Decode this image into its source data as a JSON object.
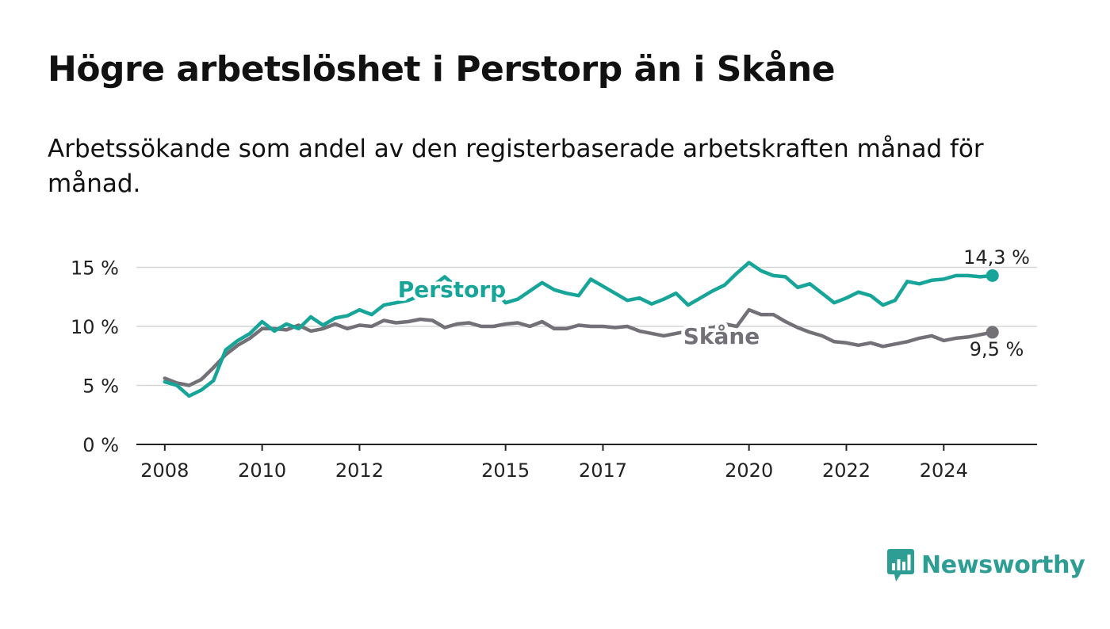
{
  "chart_data": {
    "type": "line",
    "title": "Högre arbetslöshet i Perstorp än i Skåne",
    "subtitle": "Arbetssökande som andel av den registerbaserade arbetskraften månad för månad.",
    "x_ticks": [
      "2008",
      "2010",
      "2012",
      "2015",
      "2017",
      "2020",
      "2022",
      "2024"
    ],
    "y_ticks": [
      "0 %",
      "5 %",
      "10 %",
      "15 %"
    ],
    "ylim": [
      0,
      15.5
    ],
    "xlim": [
      "2007-06",
      "2025-12"
    ],
    "grid": true,
    "series": [
      {
        "name": "Perstorp",
        "color": "#17a59a",
        "end_label": "14,3 %",
        "x": [
          "2008-01",
          "2008-04",
          "2008-07",
          "2008-10",
          "2009-01",
          "2009-04",
          "2009-07",
          "2009-10",
          "2010-01",
          "2010-04",
          "2010-07",
          "2010-10",
          "2011-01",
          "2011-04",
          "2011-07",
          "2011-10",
          "2012-01",
          "2012-04",
          "2012-07",
          "2012-10",
          "2013-01",
          "2013-04",
          "2013-07",
          "2013-10",
          "2014-01",
          "2014-04",
          "2014-07",
          "2014-10",
          "2015-01",
          "2015-04",
          "2015-07",
          "2015-10",
          "2016-01",
          "2016-04",
          "2016-07",
          "2016-10",
          "2017-01",
          "2017-04",
          "2017-07",
          "2017-10",
          "2018-01",
          "2018-04",
          "2018-07",
          "2018-10",
          "2019-01",
          "2019-04",
          "2019-07",
          "2019-10",
          "2020-01",
          "2020-04",
          "2020-07",
          "2020-10",
          "2021-01",
          "2021-04",
          "2021-07",
          "2021-10",
          "2022-01",
          "2022-04",
          "2022-07",
          "2022-10",
          "2023-01",
          "2023-04",
          "2023-07",
          "2023-10",
          "2024-01",
          "2024-04",
          "2024-07",
          "2024-10",
          "2025-01"
        ],
        "values": [
          5.3,
          5.0,
          4.1,
          4.6,
          5.4,
          8.0,
          8.8,
          9.4,
          10.4,
          9.6,
          10.2,
          9.8,
          10.8,
          10.1,
          10.7,
          10.9,
          11.4,
          11.0,
          11.8,
          12.0,
          12.2,
          12.6,
          13.4,
          14.2,
          13.3,
          12.7,
          12.5,
          13.2,
          12.0,
          12.3,
          13.0,
          13.7,
          13.1,
          12.8,
          12.6,
          14.0,
          13.4,
          12.8,
          12.2,
          12.4,
          11.9,
          12.3,
          12.8,
          11.8,
          12.4,
          13.0,
          13.5,
          14.5,
          15.4,
          14.7,
          14.3,
          14.2,
          13.3,
          13.6,
          12.8,
          12.0,
          12.4,
          12.9,
          12.6,
          11.8,
          12.2,
          13.8,
          13.6,
          13.9,
          14.0,
          14.3,
          14.3,
          14.2,
          14.3
        ]
      },
      {
        "name": "Skåne",
        "color": "#737177",
        "end_label": "9,5 %",
        "x": [
          "2008-01",
          "2008-04",
          "2008-07",
          "2008-10",
          "2009-01",
          "2009-04",
          "2009-07",
          "2009-10",
          "2010-01",
          "2010-04",
          "2010-07",
          "2010-10",
          "2011-01",
          "2011-04",
          "2011-07",
          "2011-10",
          "2012-01",
          "2012-04",
          "2012-07",
          "2012-10",
          "2013-01",
          "2013-04",
          "2013-07",
          "2013-10",
          "2014-01",
          "2014-04",
          "2014-07",
          "2014-10",
          "2015-01",
          "2015-04",
          "2015-07",
          "2015-10",
          "2016-01",
          "2016-04",
          "2016-07",
          "2016-10",
          "2017-01",
          "2017-04",
          "2017-07",
          "2017-10",
          "2018-01",
          "2018-04",
          "2018-07",
          "2018-10",
          "2019-01",
          "2019-04",
          "2019-07",
          "2019-10",
          "2020-01",
          "2020-04",
          "2020-07",
          "2020-10",
          "2021-01",
          "2021-04",
          "2021-07",
          "2021-10",
          "2022-01",
          "2022-04",
          "2022-07",
          "2022-10",
          "2023-01",
          "2023-04",
          "2023-07",
          "2023-10",
          "2024-01",
          "2024-04",
          "2024-07",
          "2024-10",
          "2025-01"
        ],
        "values": [
          5.6,
          5.2,
          5.0,
          5.5,
          6.5,
          7.6,
          8.4,
          9.0,
          9.8,
          9.8,
          9.7,
          10.1,
          9.6,
          9.8,
          10.2,
          9.8,
          10.1,
          10.0,
          10.5,
          10.3,
          10.4,
          10.6,
          10.5,
          9.9,
          10.2,
          10.3,
          10.0,
          10.0,
          10.2,
          10.3,
          10.0,
          10.4,
          9.8,
          9.8,
          10.1,
          10.0,
          10.0,
          9.9,
          10.0,
          9.6,
          9.4,
          9.2,
          9.4,
          9.6,
          9.8,
          9.9,
          10.2,
          10.0,
          11.4,
          11.0,
          11.0,
          10.4,
          9.9,
          9.5,
          9.2,
          8.7,
          8.6,
          8.4,
          8.6,
          8.3,
          8.5,
          8.7,
          9.0,
          9.2,
          8.8,
          9.0,
          9.1,
          9.3,
          9.5
        ]
      }
    ]
  },
  "brand": {
    "name": "Newsworthy",
    "color": "#2e9e94"
  }
}
